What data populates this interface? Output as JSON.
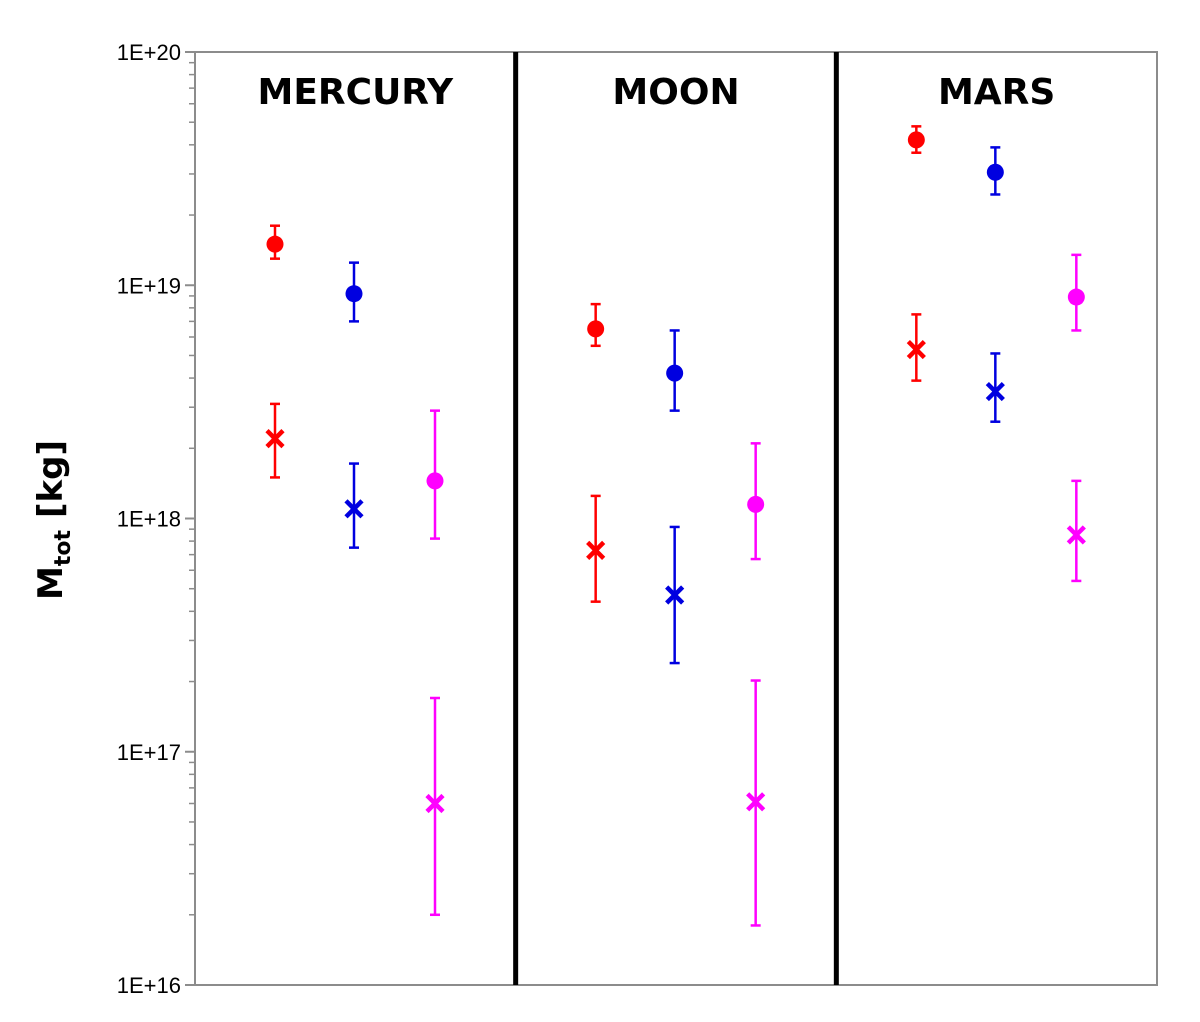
{
  "chart_data": {
    "type": "scatter",
    "title": "",
    "ylabel": {
      "main": "M",
      "sub": "tot",
      "unit": "[kg]"
    },
    "yscale": "log",
    "ylim": [
      1e+16,
      1e+20
    ],
    "yticks": [
      {
        "value": 1e+20,
        "label": "1E+20"
      },
      {
        "value": 1e+19,
        "label": "1E+19"
      },
      {
        "value": 1e+18,
        "label": "1E+18"
      },
      {
        "value": 1e+17,
        "label": "1E+17"
      },
      {
        "value": 1e+16,
        "label": "1E+16"
      }
    ],
    "panels": [
      "MERCURY",
      "MOON",
      "MARS"
    ],
    "series": [
      {
        "color": "#ff0000",
        "marker": "circle",
        "column": 0,
        "points": [
          {
            "panel": "MERCURY",
            "value": 1.5e+19,
            "low": 1.3e+19,
            "high": 1.8e+19
          },
          {
            "panel": "MOON",
            "value": 6.5e+18,
            "low": 5.5e+18,
            "high": 8.3e+18
          },
          {
            "panel": "MARS",
            "value": 4.2e+19,
            "low": 3.7e+19,
            "high": 4.8e+19
          }
        ]
      },
      {
        "color": "#ff0000",
        "marker": "x",
        "column": 0,
        "points": [
          {
            "panel": "MERCURY",
            "value": 2.2e+18,
            "low": 1.5e+18,
            "high": 3.1e+18
          },
          {
            "panel": "MOON",
            "value": 7.3e+17,
            "low": 4.4e+17,
            "high": 1.25e+18
          },
          {
            "panel": "MARS",
            "value": 5.3e+18,
            "low": 3.9e+18,
            "high": 7.5e+18
          }
        ]
      },
      {
        "color": "#0000e0",
        "marker": "circle",
        "column": 1,
        "points": [
          {
            "panel": "MERCURY",
            "value": 9.2e+18,
            "low": 7e+18,
            "high": 1.25e+19
          },
          {
            "panel": "MOON",
            "value": 4.2e+18,
            "low": 2.9e+18,
            "high": 6.4e+18
          },
          {
            "panel": "MARS",
            "value": 3.05e+19,
            "low": 2.45e+19,
            "high": 3.9e+19
          }
        ]
      },
      {
        "color": "#0000e0",
        "marker": "x",
        "column": 1,
        "points": [
          {
            "panel": "MERCURY",
            "value": 1.1e+18,
            "low": 7.5e+17,
            "high": 1.72e+18
          },
          {
            "panel": "MOON",
            "value": 4.7e+17,
            "low": 2.4e+17,
            "high": 9.2e+17
          },
          {
            "panel": "MARS",
            "value": 3.5e+18,
            "low": 2.6e+18,
            "high": 5.1e+18
          }
        ]
      },
      {
        "color": "#ff00ff",
        "marker": "circle",
        "column": 2,
        "points": [
          {
            "panel": "MERCURY",
            "value": 1.45e+18,
            "low": 8.2e+17,
            "high": 2.9e+18
          },
          {
            "panel": "MOON",
            "value": 1.15e+18,
            "low": 6.7e+17,
            "high": 2.1e+18
          },
          {
            "panel": "MARS",
            "value": 8.9e+18,
            "low": 6.4e+18,
            "high": 1.35e+19
          }
        ]
      },
      {
        "color": "#ff00ff",
        "marker": "x",
        "column": 2,
        "points": [
          {
            "panel": "MERCURY",
            "value": 6e+16,
            "low": 2e+16,
            "high": 1.7e+17
          },
          {
            "panel": "MOON",
            "value": 6.1e+16,
            "low": 1.8e+16,
            "high": 2.02e+17
          },
          {
            "panel": "MARS",
            "value": 8.5e+17,
            "low": 5.4e+17,
            "high": 1.45e+18
          }
        ]
      }
    ],
    "grid": false,
    "legend": "none"
  }
}
